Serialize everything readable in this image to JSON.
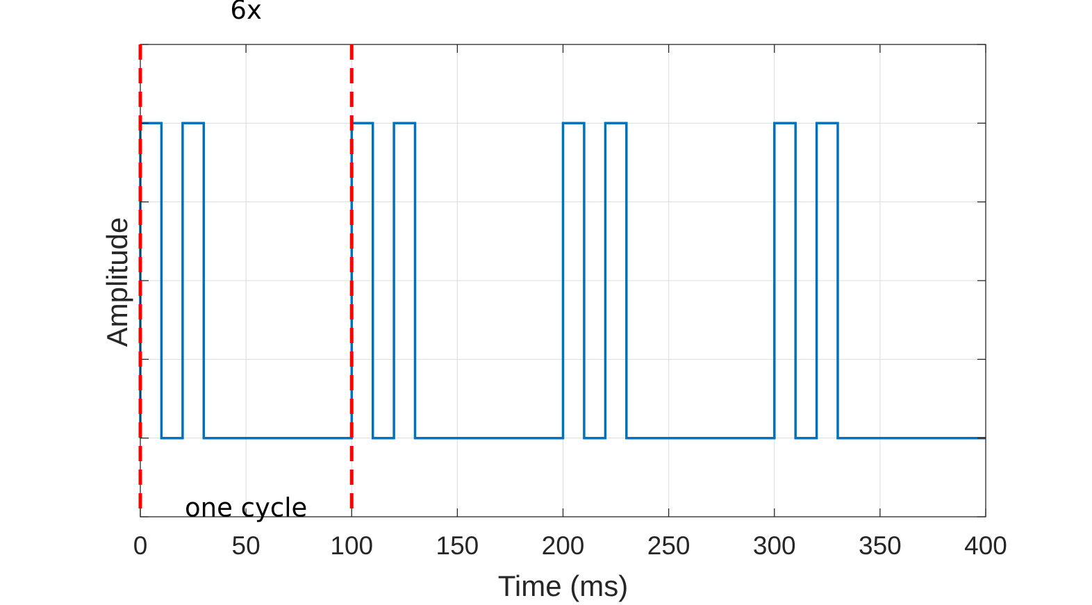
{
  "chart_data": {
    "type": "line",
    "title": "",
    "xlabel": "Time (ms)",
    "ylabel": "Amplitude",
    "xlim": [
      0,
      400
    ],
    "ylim": [
      -0.25,
      1.25
    ],
    "x_ticks": [
      0,
      50,
      100,
      150,
      200,
      250,
      300,
      350,
      400
    ],
    "x_tick_labels": [
      "0",
      "50",
      "100",
      "150",
      "200",
      "250",
      "300",
      "350",
      "400"
    ],
    "y_ticks": [
      -0.25,
      0,
      0.25,
      0.5,
      0.75,
      1,
      1.25
    ],
    "y_tick_labels_shown": false,
    "grid": true,
    "series": [
      {
        "color": "#0072bd",
        "x": [
          0,
          0,
          10,
          10,
          20,
          20,
          30,
          30,
          100,
          100,
          110,
          110,
          120,
          120,
          130,
          130,
          200,
          200,
          210,
          210,
          220,
          220,
          230,
          230,
          300,
          300,
          310,
          310,
          320,
          320,
          330,
          330,
          400
        ],
        "y": [
          0,
          1,
          1,
          0,
          0,
          1,
          1,
          0,
          0,
          1,
          1,
          0,
          0,
          1,
          1,
          0,
          0,
          1,
          1,
          0,
          0,
          1,
          1,
          0,
          0,
          1,
          1,
          0,
          0,
          1,
          1,
          0,
          0
        ]
      }
    ],
    "markers": [
      {
        "x": 0,
        "color": "#ff0000",
        "style": "dashed"
      },
      {
        "x": 100,
        "color": "#ff0000",
        "style": "dashed"
      }
    ],
    "annotations": [
      {
        "text": "6x",
        "x": 50,
        "y": 1.36
      },
      {
        "text": "one cycle",
        "x": 50,
        "y": -0.22
      }
    ]
  }
}
